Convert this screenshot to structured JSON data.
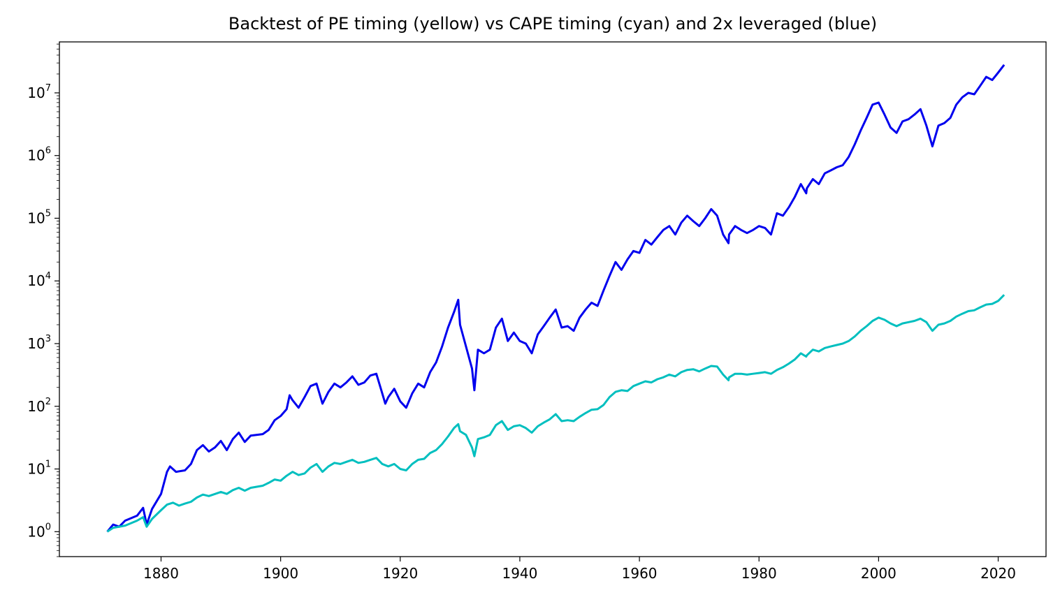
{
  "chart_data": {
    "type": "line",
    "title": "Backtest of PE timing (yellow) vs CAPE timing (cyan) and 2x leveraged (blue)",
    "xlabel": "",
    "ylabel": "",
    "yscale": "log",
    "xlim": [
      1863,
      2028
    ],
    "ylim": [
      0.4,
      65000000.0
    ],
    "grid": false,
    "legend": "none",
    "x_ticks": [
      1880,
      1900,
      1920,
      1940,
      1960,
      1980,
      2000,
      2020
    ],
    "y_ticks": [
      {
        "value": 1,
        "base": "10",
        "exp": "0"
      },
      {
        "value": 10,
        "base": "10",
        "exp": "1"
      },
      {
        "value": 100,
        "base": "10",
        "exp": "2"
      },
      {
        "value": 1000,
        "base": "10",
        "exp": "3"
      },
      {
        "value": 10000,
        "base": "10",
        "exp": "4"
      },
      {
        "value": 100000,
        "base": "10",
        "exp": "5"
      },
      {
        "value": 1000000,
        "base": "10",
        "exp": "6"
      },
      {
        "value": 10000000,
        "base": "10",
        "exp": "7"
      }
    ],
    "series": [
      {
        "color": "#0000ee",
        "points": [
          [
            1871,
            1
          ],
          [
            1872,
            1.3
          ],
          [
            1873,
            1.2
          ],
          [
            1874,
            1.5
          ],
          [
            1876,
            1.8
          ],
          [
            1877,
            2.4
          ],
          [
            1877.6,
            1.3
          ],
          [
            1878.5,
            2.3
          ],
          [
            1880,
            4
          ],
          [
            1881,
            9
          ],
          [
            1881.5,
            11
          ],
          [
            1882.5,
            9
          ],
          [
            1884,
            9.5
          ],
          [
            1885,
            12
          ],
          [
            1886,
            20
          ],
          [
            1887,
            24
          ],
          [
            1888,
            19
          ],
          [
            1889,
            22
          ],
          [
            1890,
            28
          ],
          [
            1891,
            20
          ],
          [
            1892,
            30
          ],
          [
            1893,
            38
          ],
          [
            1894,
            27
          ],
          [
            1895,
            34
          ],
          [
            1897,
            36
          ],
          [
            1898,
            42
          ],
          [
            1899,
            60
          ],
          [
            1900,
            70
          ],
          [
            1901,
            90
          ],
          [
            1901.5,
            150
          ],
          [
            1902,
            125
          ],
          [
            1903,
            95
          ],
          [
            1904,
            140
          ],
          [
            1905,
            210
          ],
          [
            1906,
            230
          ],
          [
            1907,
            110
          ],
          [
            1908,
            170
          ],
          [
            1909,
            230
          ],
          [
            1910,
            200
          ],
          [
            1911,
            240
          ],
          [
            1912,
            300
          ],
          [
            1913,
            220
          ],
          [
            1914,
            240
          ],
          [
            1915,
            310
          ],
          [
            1916,
            330
          ],
          [
            1917,
            160
          ],
          [
            1917.5,
            110
          ],
          [
            1918,
            140
          ],
          [
            1919,
            190
          ],
          [
            1920,
            120
          ],
          [
            1921,
            95
          ],
          [
            1922,
            160
          ],
          [
            1923,
            230
          ],
          [
            1924,
            200
          ],
          [
            1925,
            350
          ],
          [
            1926,
            500
          ],
          [
            1927,
            900
          ],
          [
            1928,
            1800
          ],
          [
            1929,
            3200
          ],
          [
            1929.7,
            5000
          ],
          [
            1930,
            2000
          ],
          [
            1931,
            900
          ],
          [
            1932,
            400
          ],
          [
            1932.4,
            180
          ],
          [
            1933,
            800
          ],
          [
            1934,
            700
          ],
          [
            1935,
            800
          ],
          [
            1936,
            1800
          ],
          [
            1937,
            2500
          ],
          [
            1938,
            1100
          ],
          [
            1939,
            1500
          ],
          [
            1940,
            1100
          ],
          [
            1941,
            1000
          ],
          [
            1942,
            700
          ],
          [
            1943,
            1400
          ],
          [
            1944,
            1900
          ],
          [
            1945,
            2600
          ],
          [
            1946,
            3500
          ],
          [
            1947,
            1800
          ],
          [
            1948,
            1900
          ],
          [
            1949,
            1600
          ],
          [
            1950,
            2600
          ],
          [
            1951,
            3500
          ],
          [
            1952,
            4500
          ],
          [
            1953,
            4000
          ],
          [
            1954,
            7000
          ],
          [
            1955,
            12000
          ],
          [
            1956,
            20000
          ],
          [
            1957,
            15000
          ],
          [
            1958,
            22000
          ],
          [
            1959,
            30000
          ],
          [
            1960,
            28000
          ],
          [
            1961,
            45000
          ],
          [
            1962,
            38000
          ],
          [
            1963,
            50000
          ],
          [
            1964,
            65000
          ],
          [
            1965,
            75000
          ],
          [
            1966,
            55000
          ],
          [
            1967,
            85000
          ],
          [
            1968,
            110000
          ],
          [
            1969,
            90000
          ],
          [
            1970,
            75000
          ],
          [
            1971,
            100000
          ],
          [
            1972,
            140000
          ],
          [
            1973,
            110000
          ],
          [
            1974,
            55000
          ],
          [
            1974.9,
            40000
          ],
          [
            1975,
            55000
          ],
          [
            1976,
            75000
          ],
          [
            1977,
            65000
          ],
          [
            1978,
            58000
          ],
          [
            1979,
            65000
          ],
          [
            1980,
            75000
          ],
          [
            1981,
            70000
          ],
          [
            1982,
            55000
          ],
          [
            1983,
            120000
          ],
          [
            1984,
            110000
          ],
          [
            1985,
            150000
          ],
          [
            1986,
            220000
          ],
          [
            1987,
            350000
          ],
          [
            1987.9,
            250000
          ],
          [
            1988,
            300000
          ],
          [
            1989,
            420000
          ],
          [
            1990,
            350000
          ],
          [
            1991,
            520000
          ],
          [
            1992,
            580000
          ],
          [
            1993,
            650000
          ],
          [
            1994,
            700000
          ],
          [
            1995,
            950000
          ],
          [
            1996,
            1500000
          ],
          [
            1997,
            2500000
          ],
          [
            1998,
            4000000
          ],
          [
            1999,
            6500000
          ],
          [
            2000,
            7000000
          ],
          [
            2001,
            4500000
          ],
          [
            2002,
            2800000
          ],
          [
            2003,
            2300000
          ],
          [
            2004,
            3500000
          ],
          [
            2005,
            3800000
          ],
          [
            2006,
            4500000
          ],
          [
            2007,
            5500000
          ],
          [
            2008,
            3000000
          ],
          [
            2009,
            1400000
          ],
          [
            2010,
            3000000
          ],
          [
            2011,
            3300000
          ],
          [
            2012,
            4000000
          ],
          [
            2013,
            6500000
          ],
          [
            2014,
            8500000
          ],
          [
            2015,
            10000000
          ],
          [
            2016,
            9500000
          ],
          [
            2017,
            13000000
          ],
          [
            2018,
            18000000
          ],
          [
            2019,
            16000000
          ],
          [
            2020,
            21000000
          ],
          [
            2021,
            28000000
          ]
        ]
      },
      {
        "color": "#00bfbf",
        "points": [
          [
            1871,
            1
          ],
          [
            1872,
            1.15
          ],
          [
            1874,
            1.25
          ],
          [
            1876,
            1.5
          ],
          [
            1877,
            1.7
          ],
          [
            1877.6,
            1.2
          ],
          [
            1878.5,
            1.6
          ],
          [
            1880,
            2.2
          ],
          [
            1881,
            2.7
          ],
          [
            1882,
            2.9
          ],
          [
            1883,
            2.6
          ],
          [
            1884,
            2.8
          ],
          [
            1885,
            3
          ],
          [
            1886,
            3.5
          ],
          [
            1887,
            3.9
          ],
          [
            1888,
            3.7
          ],
          [
            1890,
            4.3
          ],
          [
            1891,
            4
          ],
          [
            1892,
            4.6
          ],
          [
            1893,
            5
          ],
          [
            1894,
            4.5
          ],
          [
            1895,
            5
          ],
          [
            1897,
            5.4
          ],
          [
            1898,
            6
          ],
          [
            1899,
            6.8
          ],
          [
            1900,
            6.5
          ],
          [
            1901,
            7.8
          ],
          [
            1902,
            9
          ],
          [
            1903,
            8
          ],
          [
            1904,
            8.5
          ],
          [
            1905,
            10.5
          ],
          [
            1906,
            12
          ],
          [
            1907,
            9
          ],
          [
            1908,
            11
          ],
          [
            1909,
            12.5
          ],
          [
            1910,
            12
          ],
          [
            1911,
            13
          ],
          [
            1912,
            14
          ],
          [
            1913,
            12.5
          ],
          [
            1914,
            13
          ],
          [
            1915,
            14
          ],
          [
            1916,
            15
          ],
          [
            1917,
            12
          ],
          [
            1918,
            11
          ],
          [
            1919,
            12
          ],
          [
            1920,
            10
          ],
          [
            1921,
            9.5
          ],
          [
            1922,
            12
          ],
          [
            1923,
            14
          ],
          [
            1924,
            14.5
          ],
          [
            1925,
            18
          ],
          [
            1926,
            20
          ],
          [
            1927,
            25
          ],
          [
            1928,
            33
          ],
          [
            1929,
            45
          ],
          [
            1929.7,
            52
          ],
          [
            1930,
            40
          ],
          [
            1931,
            35
          ],
          [
            1932,
            22
          ],
          [
            1932.4,
            16
          ],
          [
            1933,
            30
          ],
          [
            1934,
            32
          ],
          [
            1935,
            35
          ],
          [
            1936,
            50
          ],
          [
            1937,
            58
          ],
          [
            1938,
            42
          ],
          [
            1939,
            48
          ],
          [
            1940,
            50
          ],
          [
            1941,
            45
          ],
          [
            1942,
            38
          ],
          [
            1943,
            48
          ],
          [
            1944,
            55
          ],
          [
            1945,
            62
          ],
          [
            1946,
            75
          ],
          [
            1947,
            58
          ],
          [
            1948,
            60
          ],
          [
            1949,
            58
          ],
          [
            1950,
            68
          ],
          [
            1951,
            78
          ],
          [
            1952,
            88
          ],
          [
            1953,
            90
          ],
          [
            1954,
            105
          ],
          [
            1955,
            140
          ],
          [
            1956,
            170
          ],
          [
            1957,
            180
          ],
          [
            1958,
            175
          ],
          [
            1959,
            210
          ],
          [
            1960,
            230
          ],
          [
            1961,
            250
          ],
          [
            1962,
            240
          ],
          [
            1963,
            270
          ],
          [
            1964,
            290
          ],
          [
            1965,
            320
          ],
          [
            1966,
            300
          ],
          [
            1967,
            350
          ],
          [
            1968,
            380
          ],
          [
            1969,
            390
          ],
          [
            1970,
            360
          ],
          [
            1971,
            400
          ],
          [
            1972,
            440
          ],
          [
            1973,
            430
          ],
          [
            1974,
            320
          ],
          [
            1974.9,
            260
          ],
          [
            1975,
            290
          ],
          [
            1976,
            330
          ],
          [
            1977,
            330
          ],
          [
            1978,
            320
          ],
          [
            1979,
            330
          ],
          [
            1980,
            340
          ],
          [
            1981,
            350
          ],
          [
            1982,
            330
          ],
          [
            1983,
            380
          ],
          [
            1984,
            420
          ],
          [
            1985,
            480
          ],
          [
            1986,
            560
          ],
          [
            1987,
            700
          ],
          [
            1987.9,
            620
          ],
          [
            1988,
            650
          ],
          [
            1989,
            800
          ],
          [
            1990,
            750
          ],
          [
            1991,
            850
          ],
          [
            1992,
            900
          ],
          [
            1993,
            950
          ],
          [
            1994,
            1000
          ],
          [
            1995,
            1100
          ],
          [
            1996,
            1300
          ],
          [
            1997,
            1600
          ],
          [
            1998,
            1900
          ],
          [
            1999,
            2300
          ],
          [
            2000,
            2600
          ],
          [
            2001,
            2400
          ],
          [
            2002,
            2100
          ],
          [
            2003,
            1900
          ],
          [
            2004,
            2100
          ],
          [
            2005,
            2200
          ],
          [
            2006,
            2300
          ],
          [
            2007,
            2500
          ],
          [
            2008,
            2200
          ],
          [
            2009,
            1600
          ],
          [
            2010,
            2000
          ],
          [
            2011,
            2100
          ],
          [
            2012,
            2300
          ],
          [
            2013,
            2700
          ],
          [
            2014,
            3000
          ],
          [
            2015,
            3300
          ],
          [
            2016,
            3400
          ],
          [
            2017,
            3800
          ],
          [
            2018,
            4200
          ],
          [
            2019,
            4300
          ],
          [
            2020,
            4800
          ],
          [
            2021,
            6000
          ]
        ]
      }
    ]
  }
}
